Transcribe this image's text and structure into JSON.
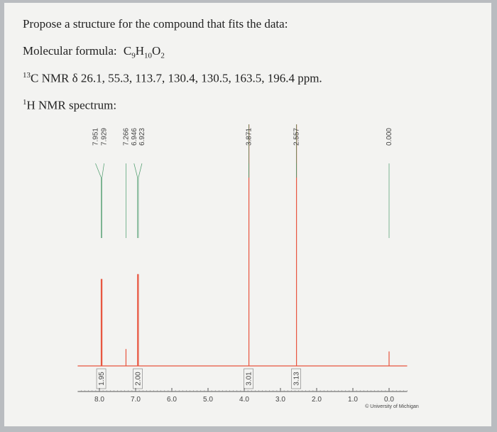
{
  "question": {
    "prompt": "Propose a structure for the compound that fits the data:",
    "formula": {
      "label": "Molecular formula:",
      "atoms": [
        {
          "symbol": "C",
          "count": 9
        },
        {
          "symbol": "H",
          "count": 10
        },
        {
          "symbol": "O",
          "count": 2
        }
      ]
    },
    "c13": {
      "isotope": "13",
      "text": "C NMR δ 26.1, 55.3, 113.7, 130.4, 130.5, 163.5, 196.4 ppm."
    },
    "h1": {
      "isotope": "1",
      "text": "H NMR spectrum:"
    }
  },
  "spectrum": {
    "xlim": [
      8.6,
      -0.5
    ],
    "ylim": [
      0,
      100
    ],
    "color": "#e8553f",
    "xticks": [
      {
        "value": 8,
        "label": "8.0"
      },
      {
        "value": 7,
        "label": "7.0"
      },
      {
        "value": 6,
        "label": "6.0"
      },
      {
        "value": 5,
        "label": "5.0"
      },
      {
        "value": 4,
        "label": "4.0"
      },
      {
        "value": 3,
        "label": "3.0"
      },
      {
        "value": 2,
        "label": "2.0"
      },
      {
        "value": 1,
        "label": "1.0"
      },
      {
        "value": 0,
        "label": "0.0"
      }
    ],
    "peaks": [
      {
        "label": "7.951",
        "ppm": 7.951,
        "height": 36
      },
      {
        "label": "7.929",
        "ppm": 7.929,
        "height": 36
      },
      {
        "label": "7.266",
        "ppm": 7.266,
        "height": 7
      },
      {
        "label": "6.946",
        "ppm": 6.946,
        "height": 38
      },
      {
        "label": "6.923",
        "ppm": 6.923,
        "height": 38
      },
      {
        "label": "3.871",
        "ppm": 3.871,
        "height": 100
      },
      {
        "label": "2.557",
        "ppm": 2.557,
        "height": 100
      },
      {
        "label": "0.000",
        "ppm": 0,
        "height": 6
      }
    ],
    "integrals": [
      {
        "label": "1.95",
        "ppm": 7.94
      },
      {
        "label": "2.00",
        "ppm": 6.93
      },
      {
        "label": "3.01",
        "ppm": 3.871
      },
      {
        "label": "3.13",
        "ppm": 2.557
      }
    ],
    "credit": "© University of Michigan"
  }
}
